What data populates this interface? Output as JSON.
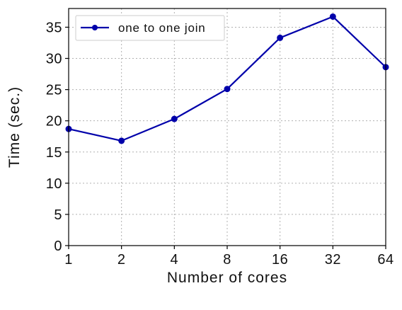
{
  "chart_data": {
    "type": "line",
    "xlabel": "Number of cores",
    "ylabel": "Time (sec.)",
    "categories": [
      "1",
      "2",
      "4",
      "8",
      "16",
      "32",
      "64"
    ],
    "series": [
      {
        "name": "one to one join",
        "values": [
          18.7,
          16.8,
          20.3,
          25.1,
          33.3,
          36.7,
          28.6
        ],
        "color": "#0000aa"
      }
    ],
    "ylim": [
      0,
      38
    ],
    "yticks": [
      0,
      5,
      10,
      15,
      20,
      25,
      30,
      35
    ],
    "grid": true,
    "legend": "top-left",
    "marker": "circle"
  }
}
